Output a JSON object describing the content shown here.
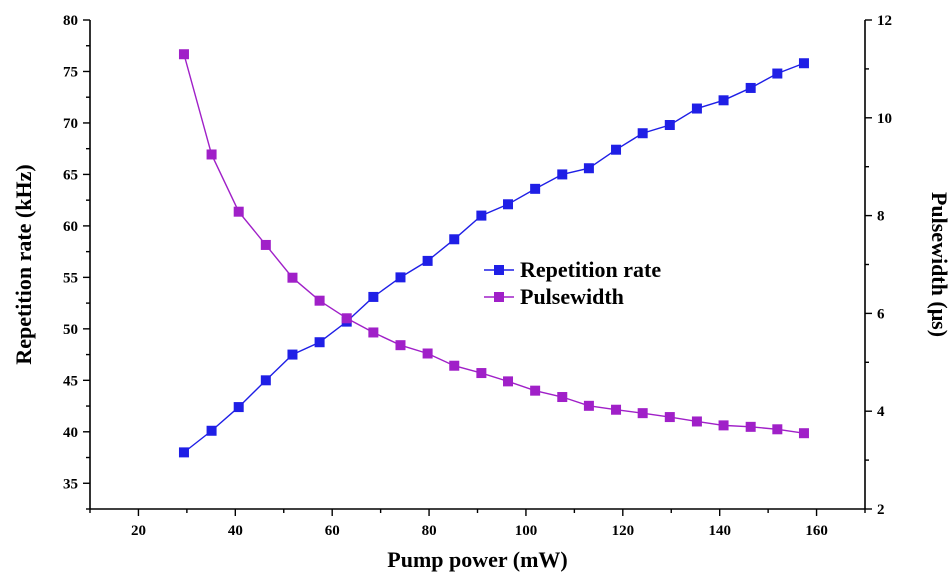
{
  "chart_data": {
    "type": "line",
    "xlabel": "Pump power (mW)",
    "ylabel": "Repetition rate (kHz)",
    "y2label": "Pulsewidth (μs)",
    "xlim": [
      10,
      170
    ],
    "ylim": [
      32.5,
      80
    ],
    "y2lim": [
      2,
      12
    ],
    "xticks": [
      20,
      40,
      60,
      80,
      100,
      120,
      140,
      160
    ],
    "yticks": [
      35,
      40,
      45,
      50,
      55,
      60,
      65,
      70,
      75,
      80
    ],
    "y2ticks": [
      2,
      4,
      6,
      8,
      10,
      12
    ],
    "grid": false,
    "legend": "center-right",
    "x": [
      29.4,
      35.1,
      40.7,
      46.3,
      51.8,
      57.4,
      63.0,
      68.5,
      74.1,
      79.7,
      85.2,
      90.8,
      96.3,
      101.9,
      107.5,
      113.0,
      118.6,
      124.1,
      129.7,
      135.3,
      140.8,
      146.4,
      151.9,
      157.4
    ],
    "series": [
      {
        "name": "Repetition rate",
        "axis": "left",
        "color": "#1f1fe6",
        "marker": "square",
        "values": [
          38.0,
          40.1,
          42.4,
          45.0,
          47.5,
          48.7,
          50.7,
          53.1,
          55.0,
          56.6,
          58.7,
          61.0,
          62.1,
          63.6,
          65.0,
          65.6,
          67.4,
          69.0,
          69.8,
          71.4,
          72.2,
          73.4,
          74.8,
          75.8
        ]
      },
      {
        "name": "Pulsewidth",
        "axis": "right",
        "color": "#a020c8",
        "marker": "square",
        "values": [
          11.3,
          9.25,
          8.08,
          7.4,
          6.73,
          6.26,
          5.9,
          5.61,
          5.35,
          5.18,
          4.93,
          4.78,
          4.61,
          4.42,
          4.29,
          4.11,
          4.03,
          3.96,
          3.88,
          3.79,
          3.71,
          3.68,
          3.63,
          3.55
        ]
      }
    ]
  }
}
